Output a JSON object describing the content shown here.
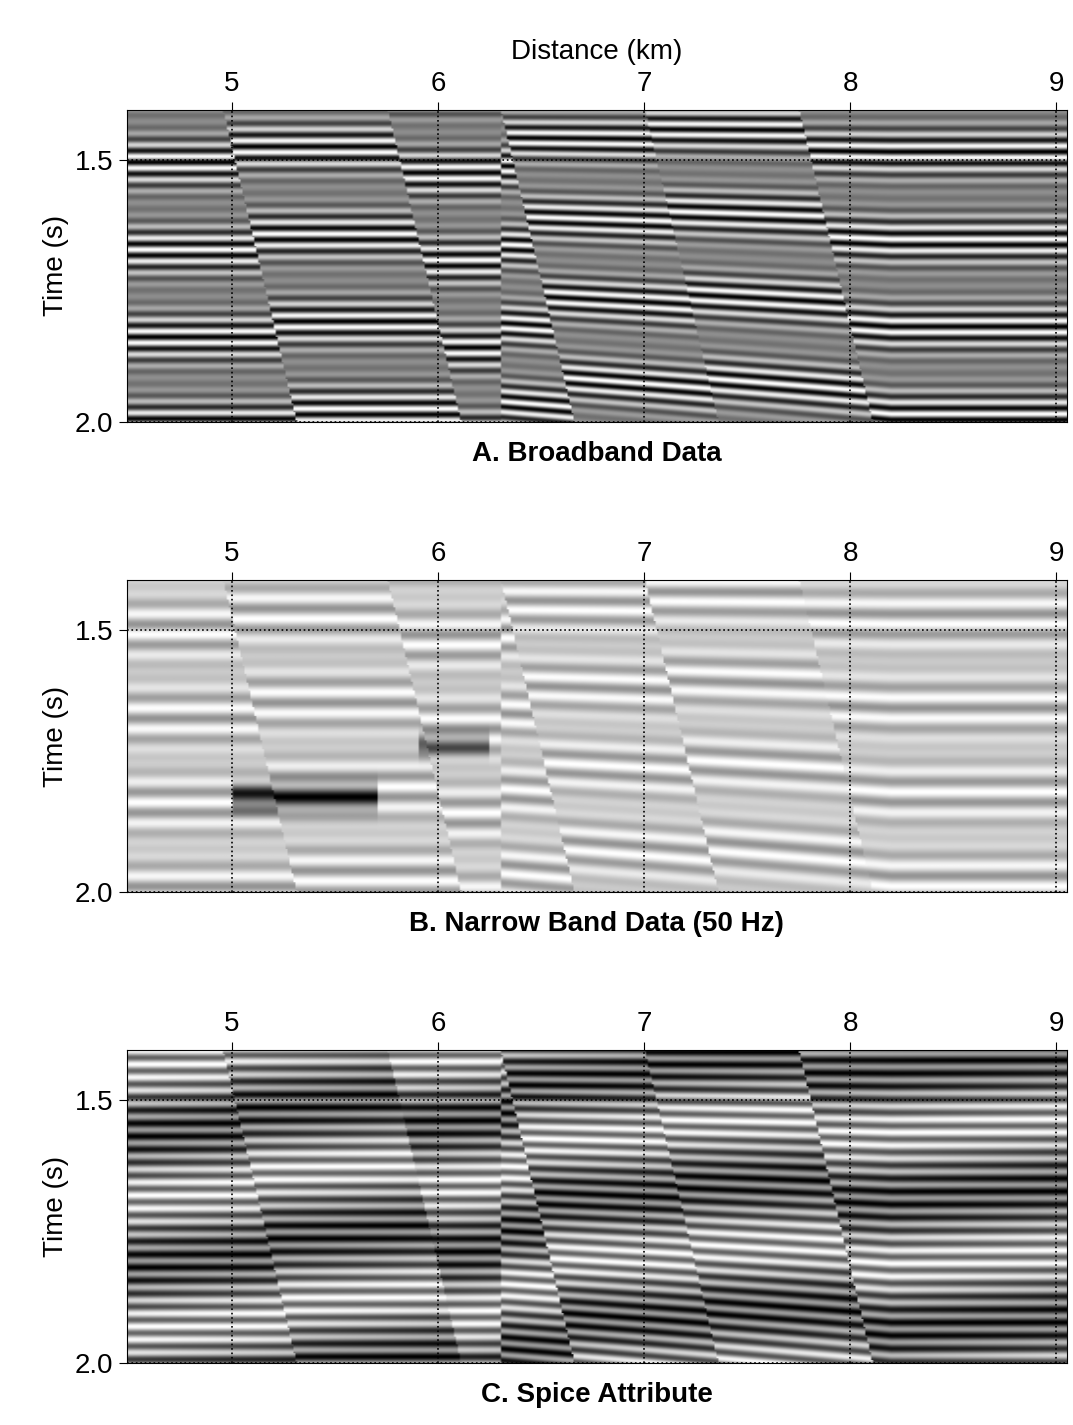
{
  "chart_data": [
    {
      "type": "image",
      "title": "A. Broadband Data",
      "xlabel": "Distance (km)",
      "ylabel": "Time (s)",
      "xlim": [
        4.49,
        9.05
      ],
      "ylim": [
        2.0,
        1.405
      ],
      "xticks": [
        5,
        6,
        7,
        8,
        9
      ],
      "yticks": [
        1.5,
        {
          "value": 2.0,
          "label": "2.0"
        }
      ],
      "grid": true,
      "color": "gray"
    },
    {
      "type": "image",
      "title": "B. Narrow Band Data (50 Hz)",
      "ylabel": "Time (s)",
      "xlim": [
        4.49,
        9.05
      ],
      "ylim": [
        2.0,
        1.405
      ],
      "xticks": [
        5,
        6,
        7,
        8,
        9
      ],
      "yticks": [
        1.5,
        {
          "value": 2.0,
          "label": "2.0"
        }
      ],
      "grid": true,
      "color": "gray"
    },
    {
      "type": "image",
      "title": "C. Spice Attribute",
      "ylabel": "Time (s)",
      "xlim": [
        4.49,
        9.05
      ],
      "ylim": [
        2.0,
        1.405
      ],
      "xticks": [
        5,
        6,
        7,
        8,
        9
      ],
      "yticks": [
        1.5,
        {
          "value": 2.0,
          "label": "2.0"
        }
      ],
      "grid": true,
      "color": "gray"
    }
  ]
}
